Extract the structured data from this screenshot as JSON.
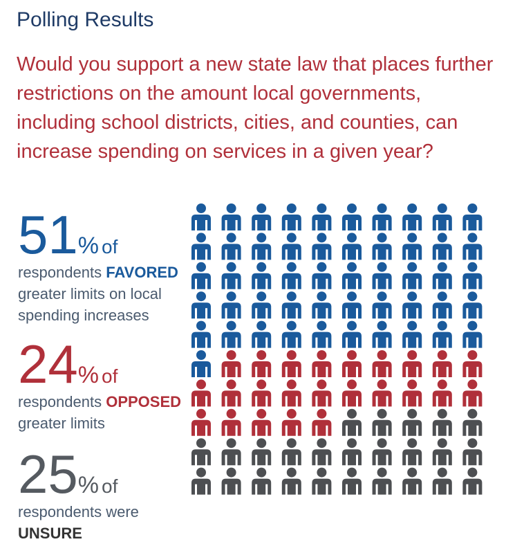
{
  "header": {
    "title": "Polling Results",
    "question": "Would you support a new state law that places further restrictions on the amount local governments, including school districts, cities, and counties, can increase spending on services in a given year?"
  },
  "stats": {
    "favored": {
      "value": "51",
      "percent_sign": "%",
      "of": "of",
      "line_start": "respondents ",
      "emphasis": "FAVORED",
      "line_rest": "greater limits on local spending increases"
    },
    "opposed": {
      "value": "24",
      "percent_sign": "%",
      "of": "of",
      "line_start": "respondents ",
      "emphasis": "OPPOSED",
      "line_rest": "greater limits"
    },
    "unsure": {
      "value": "25",
      "percent_sign": "%",
      "of": "of",
      "line_start": "respondents were",
      "emphasis": "UNSURE",
      "line_rest": ""
    }
  },
  "colors": {
    "favored": "#1a5a9c",
    "opposed": "#b0303a",
    "unsure": "#4d4f52"
  },
  "chart_data": {
    "type": "pictogram",
    "icon": "person-icon",
    "grid_columns": 10,
    "grid_rows": 10,
    "series": [
      {
        "name": "FAVORED",
        "values": [
          51
        ],
        "color": "#1a5a9c"
      },
      {
        "name": "OPPOSED",
        "values": [
          24
        ],
        "color": "#b0303a"
      },
      {
        "name": "UNSURE",
        "values": [
          25
        ],
        "color": "#4d4f52"
      }
    ]
  }
}
